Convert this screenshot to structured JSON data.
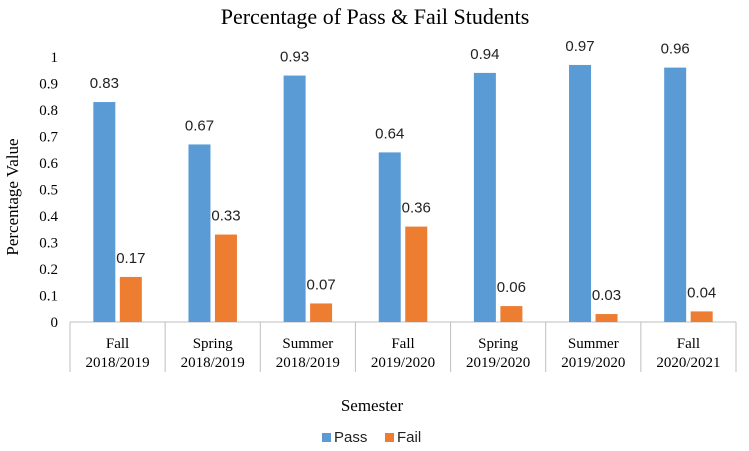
{
  "chart_data": {
    "type": "bar",
    "title": "Percentage of Pass & Fail Students",
    "xlabel": "Semester",
    "ylabel": "Percentage Value",
    "ylim": [
      0,
      1
    ],
    "yticks": [
      "0",
      "0.1",
      "0.2",
      "0.3",
      "0.4",
      "0.5",
      "0.6",
      "0.7",
      "0.8",
      "0.9",
      "1"
    ],
    "categories": [
      [
        "Fall",
        "2018/2019"
      ],
      [
        "Spring",
        "2018/2019"
      ],
      [
        "Summer",
        "2018/2019"
      ],
      [
        "Fall",
        "2019/2020"
      ],
      [
        "Spring",
        "2019/2020"
      ],
      [
        "Summer",
        "2019/2020"
      ],
      [
        "Fall",
        "2020/2021"
      ]
    ],
    "series": [
      {
        "name": "Pass",
        "color": "#5B9BD5",
        "values": [
          0.83,
          0.67,
          0.93,
          0.64,
          0.94,
          0.97,
          0.96
        ],
        "labels": [
          "0.83",
          "0.67",
          "0.93",
          "0.64",
          "0.94",
          "0.97",
          "0.96"
        ]
      },
      {
        "name": "Fail",
        "color": "#ED7D31",
        "values": [
          0.17,
          0.33,
          0.07,
          0.36,
          0.06,
          0.03,
          0.04
        ],
        "labels": [
          "0.17",
          "0.33",
          "0.07",
          "0.36",
          "0.06",
          "0.03",
          "0.04"
        ]
      }
    ],
    "grid": false,
    "legend": "bottom"
  }
}
